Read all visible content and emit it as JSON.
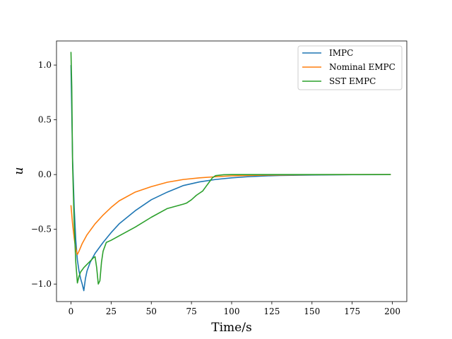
{
  "chart_data": {
    "type": "line",
    "title": "",
    "xlabel": "Time/s",
    "ylabel": "u",
    "xlim": [
      -9,
      209
    ],
    "ylim": [
      -1.16,
      1.22
    ],
    "xticks": [
      0,
      25,
      50,
      75,
      100,
      125,
      150,
      175,
      200
    ],
    "yticks": [
      -1.0,
      -0.5,
      0.0,
      0.5,
      1.0
    ],
    "ytick_labels": [
      "−1.0",
      "−0.5",
      "0.0",
      "0.5",
      "1.0"
    ],
    "grid": false,
    "legend": {
      "position": "top-right"
    },
    "series": [
      {
        "name": "IMPC",
        "color": "#1f77b4",
        "x": [
          0,
          1,
          2,
          3,
          4,
          5,
          6,
          7,
          8,
          9,
          10,
          12,
          15,
          20,
          25,
          30,
          40,
          50,
          60,
          70,
          80,
          90,
          100,
          110,
          120,
          130,
          150,
          175,
          199
        ],
        "y": [
          1.0,
          0.15,
          -0.3,
          -0.6,
          -0.78,
          -0.88,
          -0.95,
          -1.0,
          -1.06,
          -0.95,
          -0.88,
          -0.8,
          -0.72,
          -0.62,
          -0.53,
          -0.45,
          -0.33,
          -0.23,
          -0.16,
          -0.1,
          -0.067,
          -0.045,
          -0.03,
          -0.02,
          -0.013,
          -0.008,
          -0.004,
          -0.001,
          0.0
        ]
      },
      {
        "name": "Nominal EMPC",
        "color": "#ff7f0e",
        "x": [
          0,
          1,
          2,
          3,
          4,
          5,
          7,
          10,
          15,
          20,
          25,
          30,
          40,
          50,
          60,
          70,
          80,
          90,
          100,
          110,
          125,
          150,
          175,
          199
        ],
        "y": [
          -0.28,
          -0.45,
          -0.58,
          -0.68,
          -0.73,
          -0.7,
          -0.63,
          -0.55,
          -0.45,
          -0.37,
          -0.3,
          -0.24,
          -0.16,
          -0.11,
          -0.07,
          -0.045,
          -0.03,
          -0.02,
          -0.012,
          -0.008,
          -0.004,
          -0.001,
          0.0,
          0.0
        ]
      },
      {
        "name": "SST EMPC",
        "color": "#2ca02c",
        "x": [
          0,
          0.5,
          1,
          2,
          3,
          4,
          5,
          6,
          8,
          10,
          12,
          14,
          15,
          16,
          17,
          18,
          19,
          20,
          22,
          25,
          30,
          40,
          50,
          60,
          65,
          70,
          72,
          75,
          78,
          80,
          82,
          84,
          86,
          88,
          90,
          95,
          100,
          110,
          125,
          150,
          175,
          199
        ],
        "y": [
          1.12,
          0.8,
          0.1,
          -0.45,
          -0.8,
          -0.99,
          -0.93,
          -0.89,
          -0.85,
          -0.82,
          -0.79,
          -0.76,
          -0.75,
          -0.85,
          -1.0,
          -0.97,
          -0.8,
          -0.7,
          -0.62,
          -0.6,
          -0.56,
          -0.48,
          -0.39,
          -0.31,
          -0.29,
          -0.27,
          -0.26,
          -0.23,
          -0.19,
          -0.17,
          -0.15,
          -0.11,
          -0.07,
          -0.03,
          -0.01,
          -0.002,
          0.0,
          0.0,
          0.0,
          0.0,
          0.0,
          0.0
        ]
      }
    ]
  }
}
